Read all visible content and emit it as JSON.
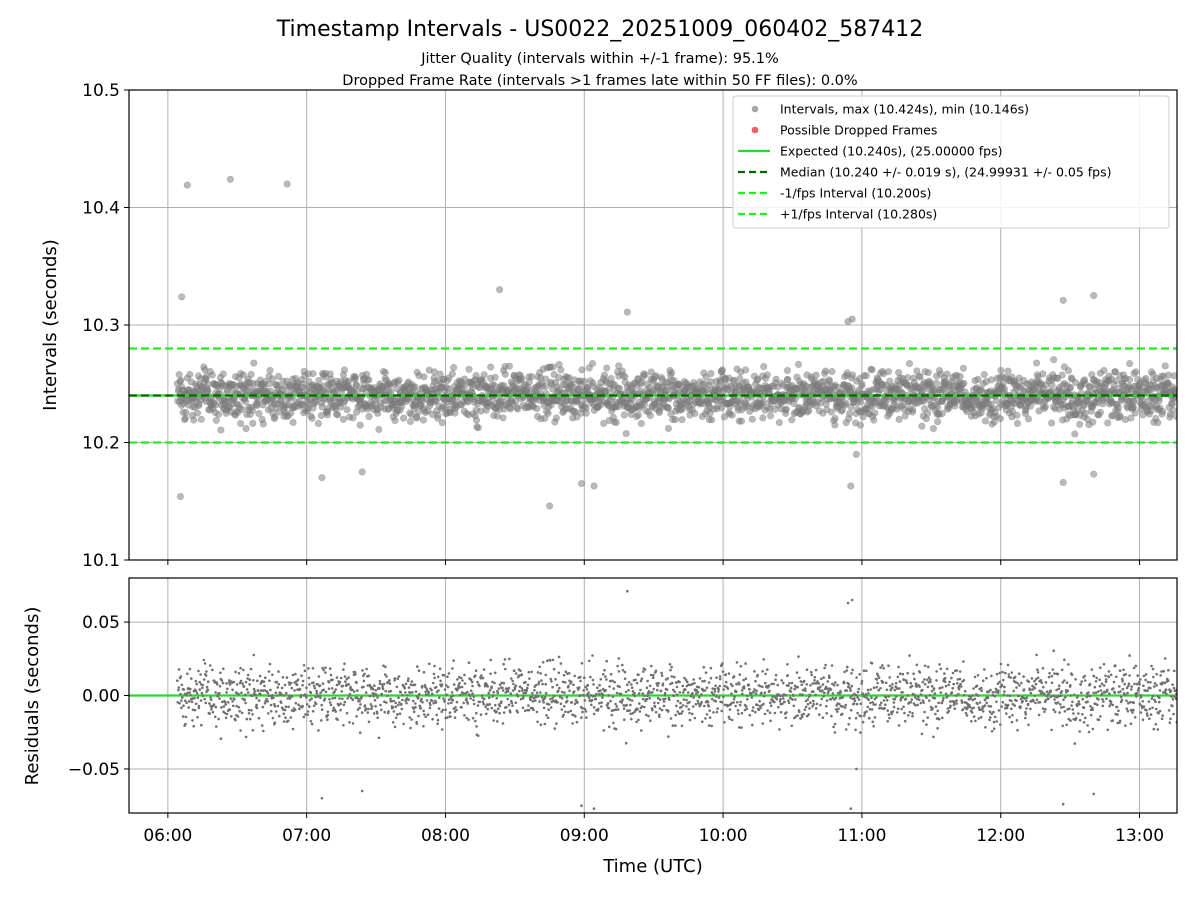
{
  "chart_data": {
    "title": "Timestamp Intervals - US0022_20251009_060402_587412",
    "subtitles": [
      "Jitter Quality (intervals within +/-1 frame): 95.1%",
      "Dropped Frame Rate (intervals >1 frames late within 50 FF files): 0.0%"
    ],
    "xlabel": "Time (UTC)",
    "x_range_hours": [
      5.72,
      13.27
    ],
    "x_ticks": [
      {
        "value": 6,
        "label": "06:00"
      },
      {
        "value": 7,
        "label": "07:00"
      },
      {
        "value": 8,
        "label": "08:00"
      },
      {
        "value": 9,
        "label": "09:00"
      },
      {
        "value": 10,
        "label": "10:00"
      },
      {
        "value": 11,
        "label": "11:00"
      },
      {
        "value": 12,
        "label": "12:00"
      },
      {
        "value": 13,
        "label": "13:00"
      }
    ],
    "panels": [
      {
        "name": "intervals",
        "type": "scatter",
        "ylabel": "Intervals (seconds)",
        "ylim": [
          10.1,
          10.5
        ],
        "y_ticks": [
          {
            "value": 10.1,
            "label": "10.1"
          },
          {
            "value": 10.2,
            "label": "10.2"
          },
          {
            "value": 10.3,
            "label": "10.3"
          },
          {
            "value": 10.4,
            "label": "10.4"
          },
          {
            "value": 10.5,
            "label": "10.5"
          }
        ],
        "scatter": {
          "name": "Intervals",
          "color": "#808080",
          "n_points": 2500,
          "t_start": 6.07,
          "t_end": 13.27,
          "center": 10.24,
          "band_half_width": 0.04,
          "outliers": [
            {
              "t": 6.14,
              "v": 10.419
            },
            {
              "t": 6.45,
              "v": 10.424
            },
            {
              "t": 6.86,
              "v": 10.42
            },
            {
              "t": 6.1,
              "v": 10.324
            },
            {
              "t": 6.09,
              "v": 10.154
            },
            {
              "t": 8.39,
              "v": 10.33
            },
            {
              "t": 8.75,
              "v": 10.146
            },
            {
              "t": 8.98,
              "v": 10.165
            },
            {
              "t": 9.07,
              "v": 10.163
            },
            {
              "t": 9.31,
              "v": 10.311
            },
            {
              "t": 10.93,
              "v": 10.305
            },
            {
              "t": 10.9,
              "v": 10.303
            },
            {
              "t": 10.96,
              "v": 10.19
            },
            {
              "t": 10.92,
              "v": 10.163
            },
            {
              "t": 12.45,
              "v": 10.321
            },
            {
              "t": 12.45,
              "v": 10.166
            },
            {
              "t": 12.67,
              "v": 10.325
            },
            {
              "t": 12.67,
              "v": 10.173
            },
            {
              "t": 7.11,
              "v": 10.17
            },
            {
              "t": 7.4,
              "v": 10.175
            }
          ]
        },
        "dropped_frames": [],
        "lines": [
          {
            "name": "Expected",
            "value": 10.24,
            "color": "#22dd22",
            "style": "solid"
          },
          {
            "name": "Median",
            "value": 10.24,
            "color": "#006400",
            "style": "dashed"
          },
          {
            "name": "-1/fps Interval",
            "value": 10.2,
            "color": "#22ee22",
            "style": "dashed"
          },
          {
            "name": "+1/fps Interval",
            "value": 10.28,
            "color": "#22ee22",
            "style": "dashed"
          }
        ],
        "legend": {
          "placement": "top-right",
          "entries": [
            {
              "marker": "dot",
              "color": "#a8a8a8",
              "label": "Intervals, max (10.424s), min (10.146s)"
            },
            {
              "marker": "dot",
              "color": "#f06060",
              "label": "Possible Dropped Frames"
            },
            {
              "marker": "solid",
              "color": "#22dd22",
              "label": "Expected (10.240s), (25.00000 fps)"
            },
            {
              "marker": "dashed",
              "color": "#006400",
              "label": "Median (10.240 +/- 0.019 s), (24.99931 +/- 0.05 fps)"
            },
            {
              "marker": "dashed",
              "color": "#22ee22",
              "label": "-1/fps Interval (10.200s)"
            },
            {
              "marker": "dashed",
              "color": "#22ee22",
              "label": "+1/fps Interval (10.280s)"
            }
          ]
        }
      },
      {
        "name": "residuals",
        "type": "scatter",
        "ylabel": "Residuals (seconds)",
        "ylim": [
          -0.08,
          0.08
        ],
        "y_ticks": [
          {
            "value": -0.05,
            "label": "−0.05"
          },
          {
            "value": 0.0,
            "label": "0.00"
          },
          {
            "value": 0.05,
            "label": "0.05"
          }
        ],
        "zero_line_color": "#22dd22",
        "dot_color": "#707070"
      }
    ]
  }
}
